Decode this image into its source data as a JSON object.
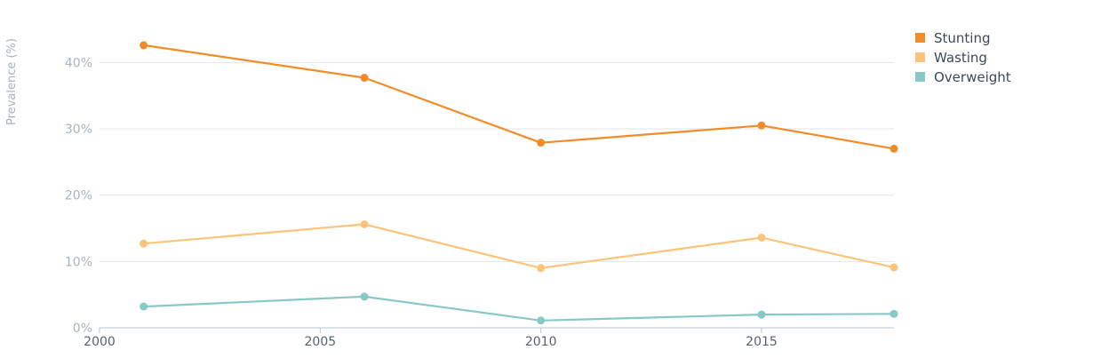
{
  "chart_data": {
    "type": "line",
    "ylabel": "Prevalence (%)",
    "xlim": [
      2000,
      2018
    ],
    "ylim": [
      0,
      45
    ],
    "x_ticks": [
      2000,
      2005,
      2010,
      2015
    ],
    "x_tick_labels": [
      "2000",
      "2005",
      "2010",
      "2015"
    ],
    "y_ticks": [
      0,
      10,
      20,
      30,
      40
    ],
    "y_tick_labels": [
      "0%",
      "10%",
      "20%",
      "30%",
      "40%"
    ],
    "grid": true,
    "legend_position": "top-right",
    "x": [
      2001,
      2006,
      2010,
      2015,
      2018
    ],
    "series": [
      {
        "name": "Stunting",
        "color": "#f28c28",
        "values": [
          42.6,
          37.7,
          27.9,
          30.5,
          27.0
        ]
      },
      {
        "name": "Wasting",
        "color": "#fbc47a",
        "values": [
          12.7,
          15.6,
          9.0,
          13.6,
          9.1
        ]
      },
      {
        "name": "Overweight",
        "color": "#88c8c6",
        "values": [
          3.2,
          4.7,
          1.1,
          2.0,
          2.1
        ]
      }
    ]
  }
}
